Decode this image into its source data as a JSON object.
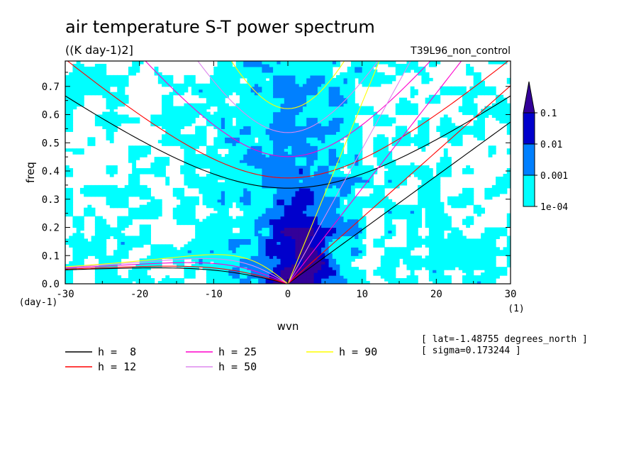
{
  "chart_data": {
    "type": "heatmap",
    "title": "air temperature S-T power spectrum",
    "units": "((K day-1)2]",
    "experiment": "T39L96_non_control",
    "xlabel": "wvn",
    "ylabel": "freq",
    "x_unit": "(1)",
    "y_unit": "(day-1)",
    "xlim": [
      -30,
      30
    ],
    "ylim": [
      0,
      0.79
    ],
    "x_ticks": [
      -30,
      -20,
      -10,
      0,
      10,
      20,
      30
    ],
    "x_tick_labels": [
      "-30",
      "-20",
      "-10",
      "0",
      "10",
      "20",
      "30"
    ],
    "y_ticks": [
      0.0,
      0.1,
      0.2,
      0.3,
      0.4,
      0.5,
      0.6,
      0.7
    ],
    "y_tick_labels": [
      "0.0",
      "0.1",
      "0.2",
      "0.3",
      "0.4",
      "0.5",
      "0.6",
      "0.7"
    ],
    "colorbar": {
      "levels": [
        0.0001,
        0.001,
        0.01,
        0.1
      ],
      "labels": [
        "1e-04",
        "0.001",
        "0.01",
        "0.1"
      ],
      "colors": [
        "#00ffff",
        "#0080ff",
        "#0000cc",
        "#330099"
      ]
    },
    "dispersion_curves": [
      {
        "name": "h =  8",
        "h": 8,
        "color": "#000000"
      },
      {
        "name": "h = 12",
        "h": 12,
        "color": "#ff0000"
      },
      {
        "name": "h = 25",
        "h": 25,
        "color": "#ff00cc"
      },
      {
        "name": "h = 50",
        "h": 50,
        "color": "#dd88ee"
      },
      {
        "name": "h = 90",
        "h": 90,
        "color": "#ffff00"
      }
    ],
    "annotations": [
      "[ lat=-1.48755 degrees_north ]",
      "[ sigma=0.173244 ]"
    ]
  }
}
